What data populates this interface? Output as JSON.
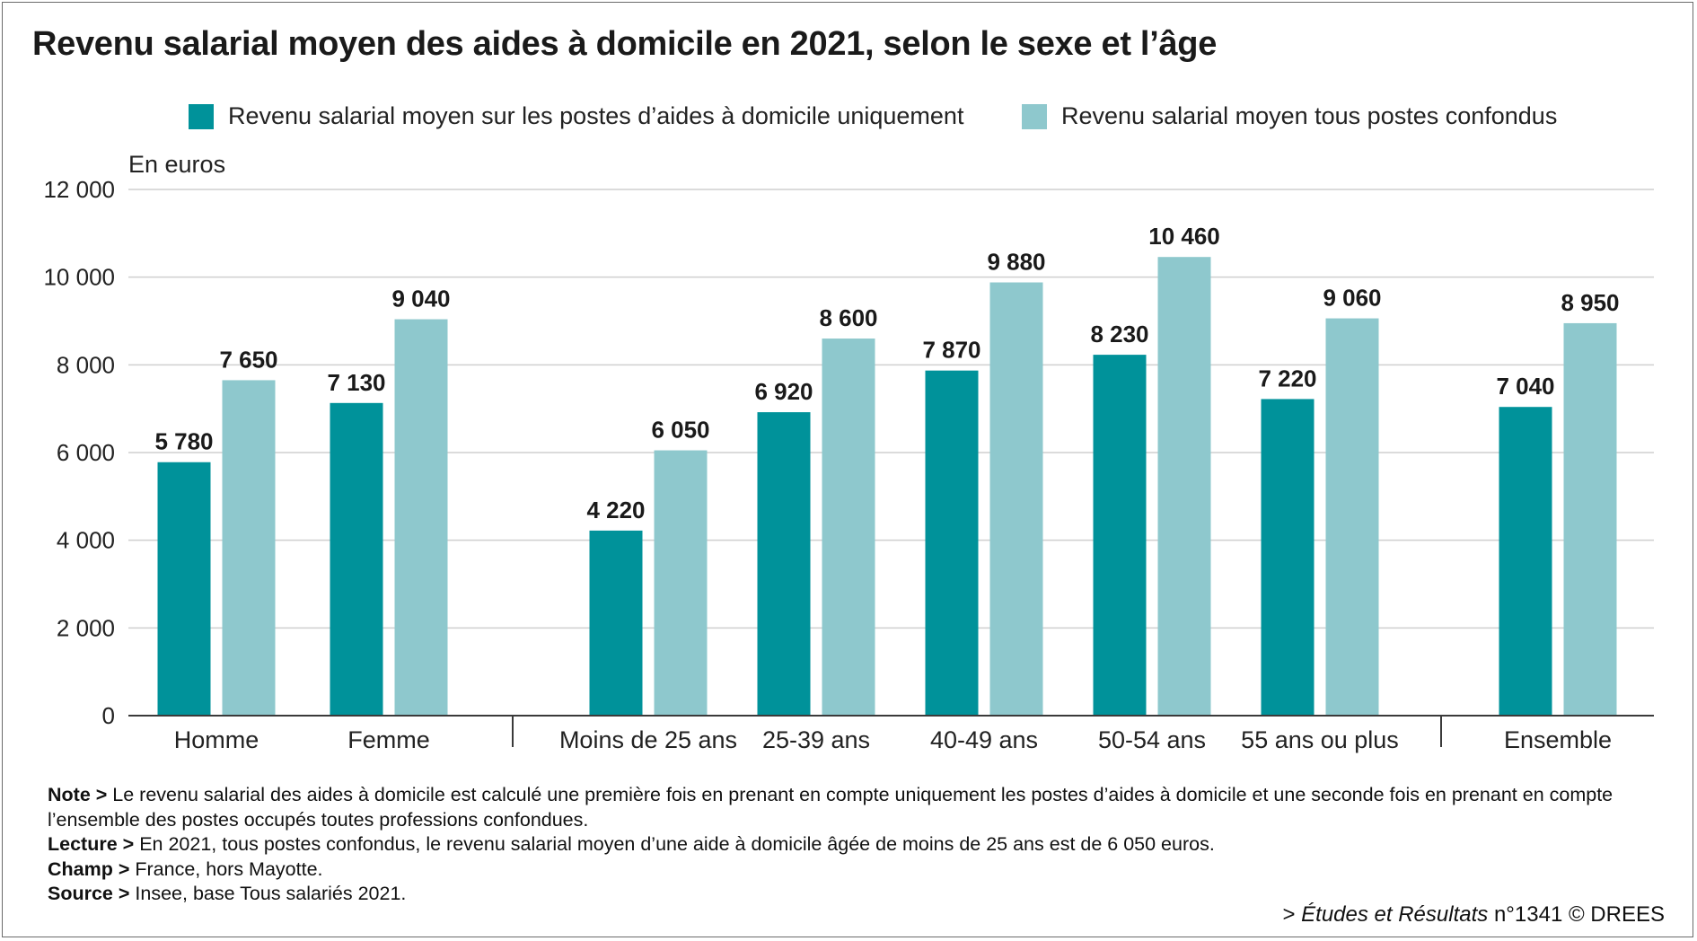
{
  "title": "Revenu salarial moyen des aides à domicile en 2021, selon le sexe et l’âge",
  "legend": [
    {
      "label": "Revenu salarial moyen sur les postes d’aides à domicile uniquement",
      "color": "#00929a"
    },
    {
      "label": "Revenu salarial moyen tous postes confondus",
      "color": "#8ec8cd"
    }
  ],
  "chart_data": {
    "type": "bar",
    "ylabel": "En euros",
    "ylim": [
      0,
      12000
    ],
    "yticks": [
      0,
      2000,
      4000,
      6000,
      8000,
      10000,
      12000
    ],
    "ytick_labels": [
      "0",
      "2 000",
      "4 000",
      "6 000",
      "8 000",
      "10 000",
      "12 000"
    ],
    "grid": true,
    "legend_position": "top",
    "categories": [
      "Homme",
      "Femme",
      "Moins de 25 ans",
      "25-39 ans",
      "40-49 ans",
      "50-54 ans",
      "55 ans ou plus",
      "Ensemble"
    ],
    "groups": [
      [
        "Homme",
        "Femme"
      ],
      [
        "Moins de 25 ans",
        "25-39 ans",
        "40-49 ans",
        "50-54 ans",
        "55 ans ou plus"
      ],
      [
        "Ensemble"
      ]
    ],
    "series": [
      {
        "name": "Revenu salarial moyen sur les postes d’aides à domicile uniquement",
        "color": "#00929a",
        "values": [
          5780,
          7130,
          4220,
          6920,
          7870,
          8230,
          7220,
          7040
        ],
        "labels": [
          "5 780",
          "7 130",
          "4 220",
          "6 920",
          "7 870",
          "8 230",
          "7 220",
          "7 040"
        ]
      },
      {
        "name": "Revenu salarial moyen tous postes confondus",
        "color": "#8ec8cd",
        "values": [
          7650,
          9040,
          6050,
          8600,
          9880,
          10460,
          9060,
          8950
        ],
        "labels": [
          "7 650",
          "9 040",
          "6 050",
          "8 600",
          "9 880",
          "10 460",
          "9 060",
          "8 950"
        ]
      }
    ]
  },
  "notes": {
    "note_label": "Note >",
    "note_text": "Le revenu salarial des aides à domicile est calculé une première fois en prenant en compte uniquement les postes d’aides à domicile et une seconde fois en prenant en compte l’ensemble des postes occupés toutes professions confondues.",
    "lecture_label": "Lecture >",
    "lecture_text": "En 2021, tous postes confondus, le revenu salarial moyen d’une aide à domicile âgée de moins de 25 ans est de 6 050 euros.",
    "champ_label": "Champ >",
    "champ_text": "France, hors Mayotte.",
    "source_label": "Source >",
    "source_text": "Insee, base Tous salariés 2021."
  },
  "credit": {
    "prefix": "> ",
    "publication": "Études et Résultats",
    "suffix": " n°1341 © DREES"
  }
}
